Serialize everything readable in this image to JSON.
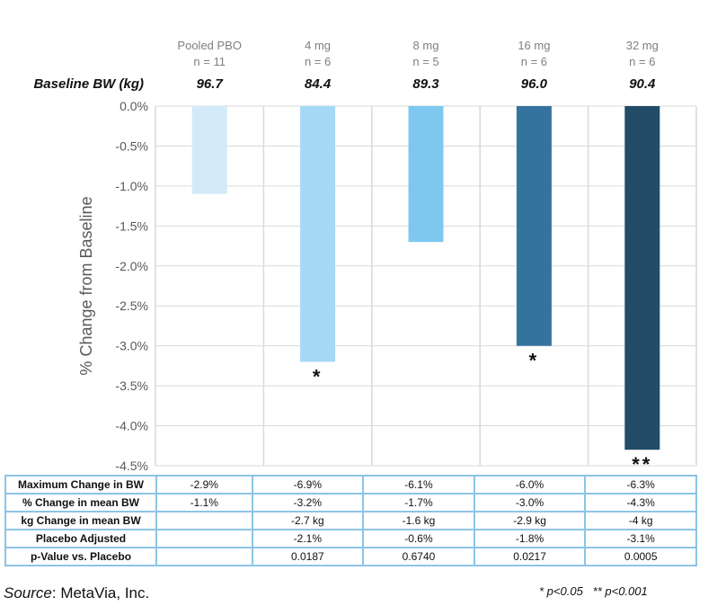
{
  "chart_data": {
    "type": "bar",
    "categories": [
      "Pooled PBO",
      "4 mg",
      "8 mg",
      "16 mg",
      "32 mg"
    ],
    "n_labels": [
      "n = 11",
      "n = 6",
      "n = 5",
      "n = 6",
      "n = 6"
    ],
    "baseline_label": "Baseline BW (kg)",
    "baseline_values": [
      "96.7",
      "84.4",
      "89.3",
      "96.0",
      "90.4"
    ],
    "values": [
      -1.1,
      -3.2,
      -1.7,
      -3.0,
      -4.3
    ],
    "colors": [
      "#d3ebf8",
      "#a6d9f5",
      "#7ec8f0",
      "#35739f",
      "#224c67"
    ],
    "significance": [
      "",
      "*",
      "",
      "*",
      "**"
    ],
    "ylabel": "% Change from Baseline",
    "ylim": [
      -4.5,
      0
    ],
    "yticks": [
      "0.0%",
      "-0.5%",
      "-1.0%",
      "-1.5%",
      "-2.0%",
      "-2.5%",
      "-3.0%",
      "-3.5%",
      "-4.0%",
      "-4.5%"
    ],
    "grid": true
  },
  "table": {
    "rows": [
      {
        "label": "Maximum Change in BW",
        "cells": [
          "-2.9%",
          "-6.9%",
          "-6.1%",
          "-6.0%",
          "-6.3%"
        ]
      },
      {
        "label": "% Change in mean BW",
        "cells": [
          "-1.1%",
          "-3.2%",
          "-1.7%",
          "-3.0%",
          "-4.3%"
        ]
      },
      {
        "label": "kg Change in mean BW",
        "cells": [
          "",
          "-2.7 kg",
          "-1.6 kg",
          "-2.9 kg",
          "-4 kg"
        ]
      },
      {
        "label": "Placebo Adjusted",
        "cells": [
          "",
          "-2.1%",
          "-0.6%",
          "-1.8%",
          "-3.1%"
        ]
      },
      {
        "label": "p-Value vs. Placebo",
        "cells": [
          "",
          "0.0187",
          "0.6740",
          "0.0217",
          "0.0005"
        ]
      }
    ]
  },
  "footer": {
    "source_label": "Source",
    "source_text": ": MetaVia, Inc.",
    "sig1": "* p<0.05",
    "sig2": "** p<0.001"
  }
}
